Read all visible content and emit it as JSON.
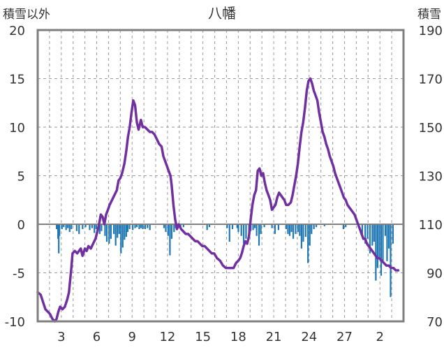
{
  "chart_data": {
    "type": "bar+line",
    "title": "八幡",
    "ylabel_left": "積雪以外",
    "ylabel_right": "積雪",
    "ylim_left": [
      -10,
      20
    ],
    "ylim_right": [
      70,
      190
    ],
    "yticks_left": [
      "20",
      "15",
      "10",
      "5",
      "0",
      "-5",
      "-10"
    ],
    "yticks_right": [
      "190",
      "170",
      "150",
      "130",
      "110",
      "90",
      "70"
    ],
    "x_tick_labels": [
      {
        "day": 3,
        "label": "3"
      },
      {
        "day": 6,
        "label": "6"
      },
      {
        "day": 9,
        "label": "9"
      },
      {
        "day": 12,
        "label": "12"
      },
      {
        "day": 15,
        "label": "15"
      },
      {
        "day": 18,
        "label": "18"
      },
      {
        "day": 21,
        "label": "21"
      },
      {
        "day": 24,
        "label": "24"
      },
      {
        "day": 27,
        "label": "27"
      },
      {
        "day": 30,
        "label": "2"
      }
    ],
    "x_range_days": [
      1,
      32
    ],
    "grid": {
      "vertical_daily_dashed": true,
      "horizontal_major": true
    },
    "colors": {
      "bars": "#1f77b4",
      "line": "#7030a0",
      "zero_line": "#808080",
      "frame": "#7f7f7f"
    },
    "bars": [
      [
        2.6,
        -0.5
      ],
      [
        2.72,
        -1.5
      ],
      [
        2.78,
        -3.0
      ],
      [
        2.84,
        -1.2
      ],
      [
        3.05,
        -0.5
      ],
      [
        3.2,
        -0.3
      ],
      [
        3.4,
        -0.6
      ],
      [
        3.55,
        -0.4
      ],
      [
        3.7,
        -0.8
      ],
      [
        3.85,
        -0.5
      ],
      [
        4.3,
        -0.7
      ],
      [
        4.5,
        -1.0
      ],
      [
        4.8,
        -0.5
      ],
      [
        5.05,
        -0.3
      ],
      [
        5.4,
        -0.6
      ],
      [
        5.6,
        -0.4
      ],
      [
        5.8,
        -0.9
      ],
      [
        5.95,
        -0.5
      ],
      [
        6.25,
        -1.0
      ],
      [
        6.4,
        -0.7
      ],
      [
        6.7,
        -1.2
      ],
      [
        6.85,
        -1.8
      ],
      [
        7.05,
        -2.0
      ],
      [
        7.2,
        -1.5
      ],
      [
        7.45,
        -1.0
      ],
      [
        7.6,
        -2.2
      ],
      [
        7.75,
        -1.4
      ],
      [
        7.9,
        -1.0
      ],
      [
        8.05,
        -3.0
      ],
      [
        8.2,
        -2.4
      ],
      [
        8.35,
        -1.6
      ],
      [
        8.5,
        -1.3
      ],
      [
        8.62,
        -0.8
      ],
      [
        8.78,
        -0.5
      ],
      [
        9.05,
        -0.6
      ],
      [
        9.25,
        -0.4
      ],
      [
        9.4,
        -0.3
      ],
      [
        9.6,
        -0.5
      ],
      [
        9.75,
        -0.4
      ],
      [
        9.9,
        -0.5
      ],
      [
        10.1,
        -0.5
      ],
      [
        10.3,
        -0.4
      ],
      [
        10.5,
        -0.6
      ],
      [
        11.7,
        -0.4
      ],
      [
        11.85,
        -0.8
      ],
      [
        12.05,
        -1.2
      ],
      [
        12.2,
        -3.2
      ],
      [
        12.35,
        -1.5
      ],
      [
        12.55,
        -0.8
      ],
      [
        12.7,
        -0.4
      ],
      [
        13.1,
        -0.5
      ],
      [
        13.35,
        -0.3
      ],
      [
        15.35,
        -0.6
      ],
      [
        15.55,
        -0.3
      ],
      [
        17.05,
        -0.4
      ],
      [
        17.25,
        -1.8
      ],
      [
        17.5,
        -0.5
      ],
      [
        17.9,
        -0.4
      ],
      [
        18.0,
        -0.8
      ],
      [
        18.25,
        -1.2
      ],
      [
        18.45,
        -2.0
      ],
      [
        18.65,
        -1.5
      ],
      [
        18.9,
        -1.0
      ],
      [
        19.05,
        -0.7
      ],
      [
        19.25,
        -0.6
      ],
      [
        19.4,
        -0.4
      ],
      [
        19.55,
        -1.2
      ],
      [
        19.75,
        -2.2
      ],
      [
        19.9,
        -1.0
      ],
      [
        20.2,
        -0.3
      ],
      [
        20.85,
        -0.4
      ],
      [
        21.1,
        -1.0
      ],
      [
        21.4,
        -0.6
      ],
      [
        22.05,
        -0.5
      ],
      [
        22.2,
        -1.0
      ],
      [
        22.35,
        -1.2
      ],
      [
        22.5,
        -0.8
      ],
      [
        22.65,
        -1.5
      ],
      [
        22.85,
        -1.0
      ],
      [
        23.05,
        -0.8
      ],
      [
        23.2,
        -1.2
      ],
      [
        23.35,
        -2.5
      ],
      [
        23.5,
        -1.8
      ],
      [
        23.7,
        -1.3
      ],
      [
        23.9,
        -4.0
      ],
      [
        24.05,
        -2.2
      ],
      [
        24.2,
        -1.0
      ],
      [
        24.4,
        -0.5
      ],
      [
        24.6,
        -0.3
      ],
      [
        25.3,
        -0.2
      ],
      [
        26.9,
        -0.5
      ],
      [
        27.1,
        -0.3
      ],
      [
        28.2,
        -0.4
      ],
      [
        28.5,
        -1.2
      ],
      [
        28.75,
        -2.0
      ],
      [
        28.95,
        -1.5
      ],
      [
        29.15,
        -3.0
      ],
      [
        29.35,
        -2.2
      ],
      [
        29.5,
        -1.8
      ],
      [
        29.65,
        -5.8
      ],
      [
        29.8,
        -4.5
      ],
      [
        29.95,
        -3.5
      ],
      [
        30.1,
        -5.3
      ],
      [
        30.25,
        -4.0
      ],
      [
        30.45,
        -1.2
      ],
      [
        30.6,
        -3.8
      ],
      [
        30.75,
        -2.5
      ],
      [
        30.9,
        -7.5
      ],
      [
        31.1,
        -2.0
      ]
    ],
    "snow_depth_line": [
      [
        1.0,
        82
      ],
      [
        1.25,
        81
      ],
      [
        1.45,
        78
      ],
      [
        1.65,
        75
      ],
      [
        1.85,
        74
      ],
      [
        2.05,
        73
      ],
      [
        2.25,
        71
      ],
      [
        2.45,
        70
      ],
      [
        2.6,
        71
      ],
      [
        2.75,
        74
      ],
      [
        2.9,
        76
      ],
      [
        3.1,
        75
      ],
      [
        3.3,
        76
      ],
      [
        3.5,
        79
      ],
      [
        3.65,
        82
      ],
      [
        3.85,
        92
      ],
      [
        3.95,
        98
      ],
      [
        4.15,
        99
      ],
      [
        4.35,
        98
      ],
      [
        4.5,
        99
      ],
      [
        4.65,
        100
      ],
      [
        4.8,
        97
      ],
      [
        5.0,
        100
      ],
      [
        5.15,
        99
      ],
      [
        5.3,
        101
      ],
      [
        5.5,
        100
      ],
      [
        5.7,
        102
      ],
      [
        5.9,
        104
      ],
      [
        6.05,
        107
      ],
      [
        6.2,
        110
      ],
      [
        6.35,
        114
      ],
      [
        6.5,
        113
      ],
      [
        6.65,
        110
      ],
      [
        6.8,
        114
      ],
      [
        6.95,
        116
      ],
      [
        7.1,
        118
      ],
      [
        7.3,
        120
      ],
      [
        7.5,
        122
      ],
      [
        7.7,
        124
      ],
      [
        7.85,
        128
      ],
      [
        8.0,
        129
      ],
      [
        8.15,
        131
      ],
      [
        8.35,
        135
      ],
      [
        8.5,
        140
      ],
      [
        8.65,
        146
      ],
      [
        8.8,
        150
      ],
      [
        8.95,
        156
      ],
      [
        9.1,
        161
      ],
      [
        9.25,
        159
      ],
      [
        9.4,
        152
      ],
      [
        9.55,
        149
      ],
      [
        9.75,
        153
      ],
      [
        9.9,
        150
      ],
      [
        10.1,
        150
      ],
      [
        10.3,
        149
      ],
      [
        10.5,
        148
      ],
      [
        10.7,
        148
      ],
      [
        10.9,
        147
      ],
      [
        11.1,
        145
      ],
      [
        11.3,
        143
      ],
      [
        11.5,
        142
      ],
      [
        11.65,
        138
      ],
      [
        11.8,
        136
      ],
      [
        11.95,
        134
      ],
      [
        12.1,
        132
      ],
      [
        12.25,
        130
      ],
      [
        12.35,
        126
      ],
      [
        12.5,
        118
      ],
      [
        12.65,
        112
      ],
      [
        12.8,
        108
      ],
      [
        12.95,
        110
      ],
      [
        13.15,
        108
      ],
      [
        13.35,
        107
      ],
      [
        13.55,
        106
      ],
      [
        13.75,
        106
      ],
      [
        13.95,
        105
      ],
      [
        14.15,
        104
      ],
      [
        14.35,
        103
      ],
      [
        14.55,
        103
      ],
      [
        14.75,
        102
      ],
      [
        14.95,
        101
      ],
      [
        15.15,
        101
      ],
      [
        15.35,
        100
      ],
      [
        15.55,
        99
      ],
      [
        15.75,
        98
      ],
      [
        15.95,
        98
      ],
      [
        16.2,
        96
      ],
      [
        16.45,
        95
      ],
      [
        16.7,
        93
      ],
      [
        16.95,
        92
      ],
      [
        17.15,
        92
      ],
      [
        17.35,
        92
      ],
      [
        17.6,
        92
      ],
      [
        17.8,
        94
      ],
      [
        18.0,
        95
      ],
      [
        18.15,
        96
      ],
      [
        18.3,
        98
      ],
      [
        18.45,
        101
      ],
      [
        18.6,
        103
      ],
      [
        18.75,
        102
      ],
      [
        18.9,
        105
      ],
      [
        19.05,
        112
      ],
      [
        19.2,
        118
      ],
      [
        19.35,
        122
      ],
      [
        19.5,
        124
      ],
      [
        19.65,
        132
      ],
      [
        19.8,
        133
      ],
      [
        19.95,
        130
      ],
      [
        20.1,
        131
      ],
      [
        20.25,
        127
      ],
      [
        20.4,
        124
      ],
      [
        20.55,
        122
      ],
      [
        20.7,
        120
      ],
      [
        20.85,
        116
      ],
      [
        21.0,
        117
      ],
      [
        21.15,
        118
      ],
      [
        21.3,
        121
      ],
      [
        21.45,
        123
      ],
      [
        21.6,
        122
      ],
      [
        21.75,
        121
      ],
      [
        21.9,
        120
      ],
      [
        22.05,
        118
      ],
      [
        22.25,
        118
      ],
      [
        22.45,
        119
      ],
      [
        22.6,
        122
      ],
      [
        22.75,
        126
      ],
      [
        22.9,
        130
      ],
      [
        23.05,
        135
      ],
      [
        23.2,
        142
      ],
      [
        23.35,
        148
      ],
      [
        23.5,
        152
      ],
      [
        23.65,
        158
      ],
      [
        23.8,
        165
      ],
      [
        23.95,
        169
      ],
      [
        24.1,
        170
      ],
      [
        24.25,
        168
      ],
      [
        24.4,
        165
      ],
      [
        24.55,
        163
      ],
      [
        24.7,
        161
      ],
      [
        24.85,
        156
      ],
      [
        25.0,
        152
      ],
      [
        25.15,
        148
      ],
      [
        25.3,
        146
      ],
      [
        25.45,
        143
      ],
      [
        25.6,
        141
      ],
      [
        25.75,
        138
      ],
      [
        25.9,
        136
      ],
      [
        26.05,
        134
      ],
      [
        26.2,
        131
      ],
      [
        26.35,
        129
      ],
      [
        26.5,
        127
      ],
      [
        26.65,
        125
      ],
      [
        26.8,
        123
      ],
      [
        26.95,
        121
      ],
      [
        27.1,
        120
      ],
      [
        27.25,
        118
      ],
      [
        27.4,
        117
      ],
      [
        27.55,
        116
      ],
      [
        27.7,
        115
      ],
      [
        27.85,
        114
      ],
      [
        28.0,
        112
      ],
      [
        28.15,
        110
      ],
      [
        28.3,
        108
      ],
      [
        28.45,
        106
      ],
      [
        28.6,
        104
      ],
      [
        28.75,
        104
      ],
      [
        28.9,
        102
      ],
      [
        29.05,
        101
      ],
      [
        29.2,
        100
      ],
      [
        29.35,
        99
      ],
      [
        29.5,
        98
      ],
      [
        29.65,
        97
      ],
      [
        29.8,
        96
      ],
      [
        29.95,
        96
      ],
      [
        30.15,
        95
      ],
      [
        30.35,
        94
      ],
      [
        30.55,
        93
      ],
      [
        30.75,
        93
      ],
      [
        30.95,
        92
      ],
      [
        31.15,
        92
      ],
      [
        31.35,
        91
      ],
      [
        31.55,
        91
      ]
    ]
  }
}
